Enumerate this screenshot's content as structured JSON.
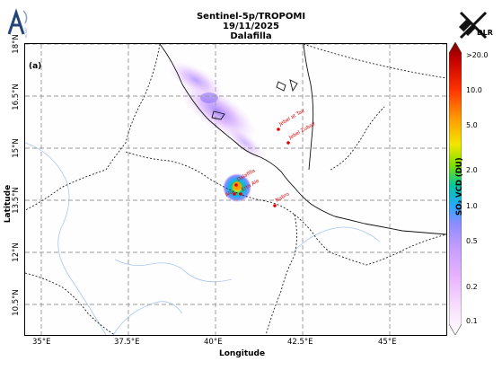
{
  "header": {
    "title_line1": "Sentinel-5p/TROPOMI",
    "title_line2": "19/11/2025",
    "title_line3": "Dalafilla",
    "logo_right": "DLR",
    "logo_left": "ACSAF"
  },
  "map": {
    "panel_label": "(a)",
    "lat_ticks": [
      "18°N",
      "16.5°N",
      "15°N",
      "13.5°N",
      "12°N",
      "10.5°N"
    ],
    "lon_ticks": [
      "35°E",
      "37.5°E",
      "40°E",
      "42.5°E",
      "45°E"
    ],
    "xlabel": "Longitude",
    "ylabel": "Latitude",
    "extent": {
      "lon": [
        34.5,
        47.0
      ],
      "lat": [
        9.6,
        18.4
      ]
    },
    "volcanoes": [
      {
        "name": "Jebel at Tair",
        "lon": 42.2,
        "lat": 15.55
      },
      {
        "name": "Jebel Zubair",
        "lon": 42.3,
        "lat": 15.2
      },
      {
        "name": "Dalafilla",
        "lon": 40.55,
        "lat": 13.8
      },
      {
        "name": "Erta Ale",
        "lon": 40.67,
        "lat": 13.6
      },
      {
        "name": "Alu",
        "lon": 40.55,
        "lat": 13.6
      },
      {
        "name": "Nabro",
        "lon": 41.7,
        "lat": 13.37
      }
    ]
  },
  "colorbar": {
    "title": "SO₂ VCD (DU)",
    "ticks": [
      ">20.0",
      "10.0",
      "5.0",
      "2.0",
      "1.0",
      "0.5",
      "0.2",
      "0.1"
    ],
    "colors": [
      "#7a0000",
      "#c40000",
      "#ff3000",
      "#ff9a00",
      "#f2e600",
      "#7fe000",
      "#00c8a0",
      "#2aa8ff",
      "#8c8cff",
      "#c59cff",
      "#e7b3ff",
      "#f7ddfb",
      "#ffffff"
    ]
  }
}
